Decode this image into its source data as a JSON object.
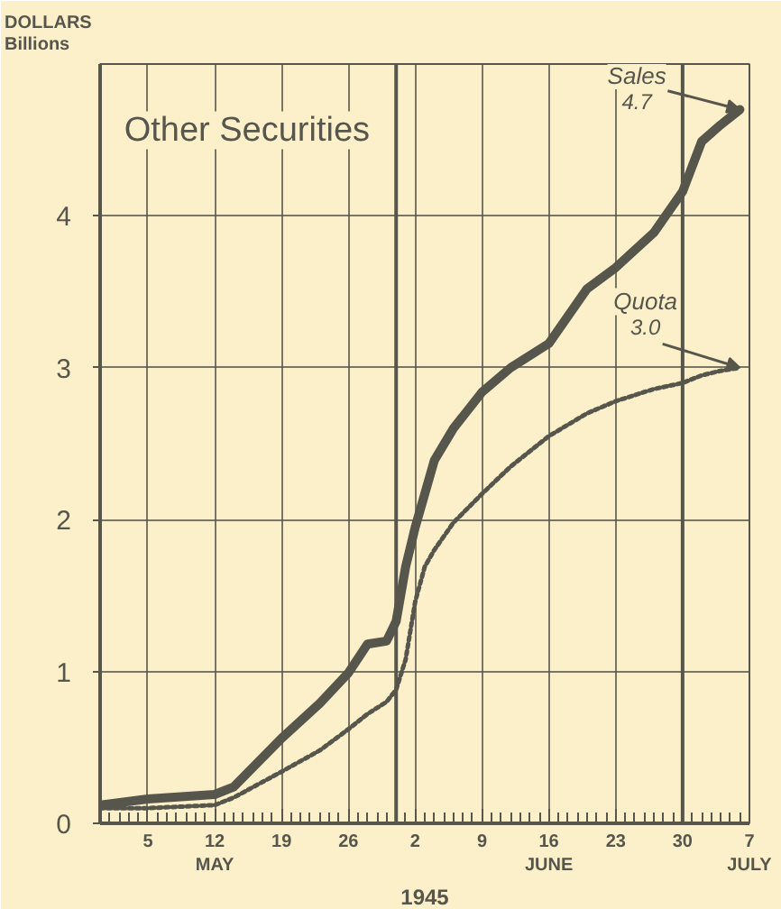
{
  "chart_data": {
    "type": "line",
    "title": "Other Securities",
    "ylabel": "DOLLARS\nBillions",
    "xlabel": "1945",
    "x": [
      "1945-04-30",
      "1945-05-05",
      "1945-05-12",
      "1945-05-14",
      "1945-05-19",
      "1945-05-23",
      "1945-05-26",
      "1945-05-28",
      "1945-05-30",
      "1945-05-31",
      "1945-06-01",
      "1945-06-02",
      "1945-06-03",
      "1945-06-04",
      "1945-06-06",
      "1945-06-09",
      "1945-06-12",
      "1945-06-16",
      "1945-06-20",
      "1945-06-23",
      "1945-06-27",
      "1945-06-30",
      "1945-07-02",
      "1945-07-04",
      "1945-07-06"
    ],
    "series": [
      {
        "name": "Sales",
        "color": "#57564c",
        "line_style": "solid",
        "values": [
          0.12,
          0.16,
          0.19,
          0.24,
          0.56,
          0.79,
          0.99,
          1.18,
          1.2,
          1.33,
          1.69,
          1.95,
          2.17,
          2.39,
          2.6,
          2.84,
          3.0,
          3.16,
          3.52,
          3.66,
          3.89,
          4.16,
          4.49,
          4.6,
          4.7
        ]
      },
      {
        "name": "Quota",
        "color": "#57564c",
        "line_style": "dotted",
        "values": [
          0.1,
          0.1,
          0.12,
          0.17,
          0.34,
          0.48,
          0.62,
          0.72,
          0.8,
          0.88,
          1.08,
          1.46,
          1.69,
          1.8,
          1.98,
          2.17,
          2.35,
          2.55,
          2.7,
          2.78,
          2.86,
          2.9,
          2.95,
          2.98,
          3.0
        ]
      }
    ],
    "annotations": [
      {
        "text": "4.7",
        "x": "1945-07-06",
        "y": 4.7
      },
      {
        "text": "3.0",
        "x": "1945-07-06",
        "y": 3.0
      }
    ],
    "xlim": [
      "1945-04-30",
      "1945-07-07"
    ],
    "xticks": [
      {
        "value": "1945-05-05",
        "label": "5"
      },
      {
        "value": "1945-05-12",
        "label": "12\nMAY"
      },
      {
        "value": "1945-05-19",
        "label": "19"
      },
      {
        "value": "1945-05-26",
        "label": "26"
      },
      {
        "value": "1945-06-02",
        "label": "2"
      },
      {
        "value": "1945-06-09",
        "label": "9"
      },
      {
        "value": "1945-06-16",
        "label": "16\nJUNE"
      },
      {
        "value": "1945-06-23",
        "label": "23"
      },
      {
        "value": "1945-06-30",
        "label": "30"
      },
      {
        "value": "1945-07-07",
        "label": "7\nJULY"
      }
    ],
    "ylim": [
      0,
      5
    ],
    "yticks": [
      0,
      1,
      2,
      3,
      4
    ],
    "ref_lines": [
      {
        "axis": "x",
        "value": "1945-05-31",
        "color": "#57564c"
      },
      {
        "axis": "x",
        "value": "1945-06-30",
        "color": "#57564c"
      }
    ],
    "grid": true
  }
}
